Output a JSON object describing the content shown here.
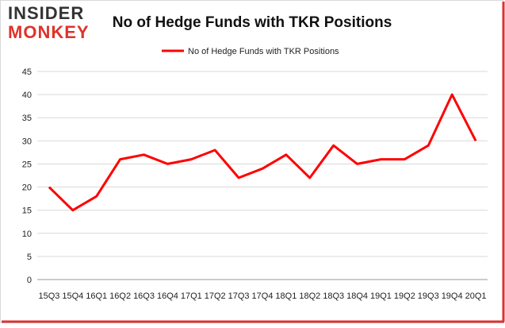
{
  "logo": {
    "line1": "INSIDER",
    "line2": "MONKEY"
  },
  "chart_data": {
    "type": "line",
    "title": "No of Hedge Funds with TKR Positions",
    "categories": [
      "15Q3",
      "15Q4",
      "16Q1",
      "16Q2",
      "16Q3",
      "16Q4",
      "17Q1",
      "17Q2",
      "17Q3",
      "17Q4",
      "18Q1",
      "18Q2",
      "18Q3",
      "18Q4",
      "19Q1",
      "19Q2",
      "19Q3",
      "19Q4",
      "20Q1"
    ],
    "series": [
      {
        "name": "No of Hedge Funds with TKR Positions",
        "color": "#ff0000",
        "values": [
          20,
          15,
          18,
          26,
          27,
          25,
          26,
          28,
          22,
          24,
          27,
          22,
          29,
          25,
          26,
          26,
          29,
          40,
          30
        ]
      }
    ],
    "ylim": [
      0,
      45
    ],
    "yticks": [
      0,
      5,
      10,
      15,
      20,
      25,
      30,
      35,
      40,
      45
    ],
    "grid": true,
    "legend": "top"
  }
}
